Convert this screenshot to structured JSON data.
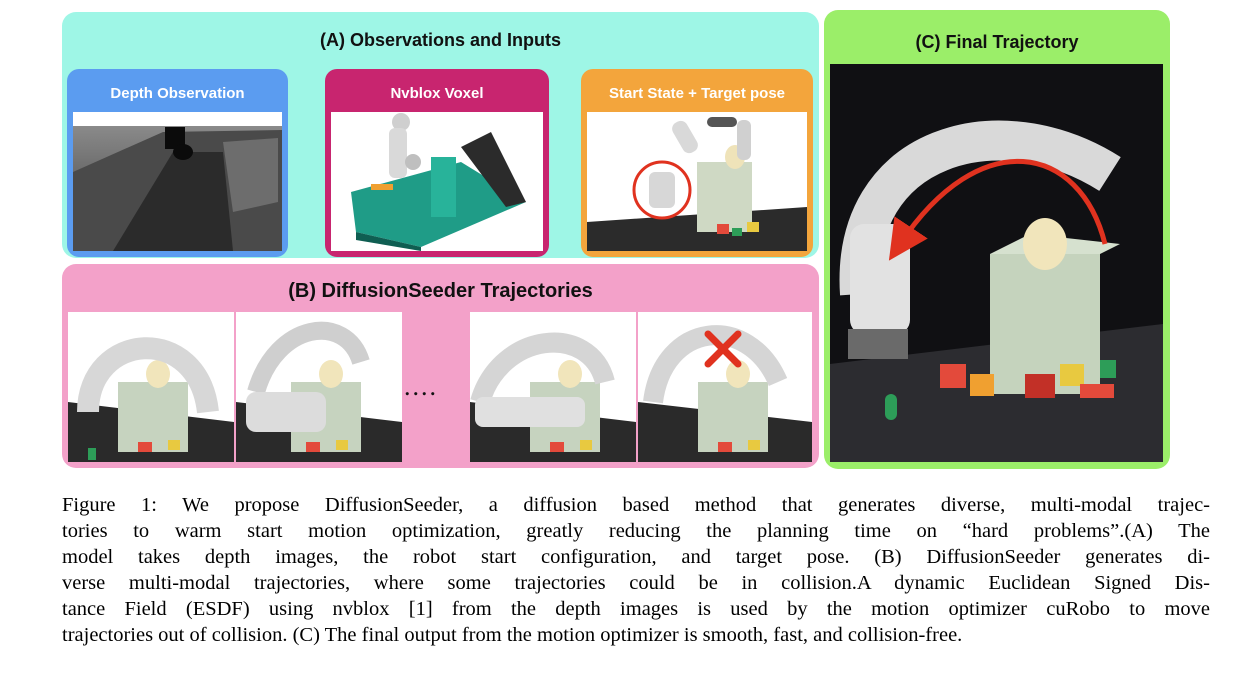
{
  "panels": {
    "a": {
      "title": "(A) Observations and Inputs",
      "subpanels": [
        {
          "title": "Depth Observation"
        },
        {
          "title": "Nvblox Voxel"
        },
        {
          "title": "Start State + Target pose"
        }
      ]
    },
    "b": {
      "title": "(B) DiffusionSeeder Trajectories",
      "ellipsis": "...."
    },
    "c": {
      "title": "(C) Final Trajectory"
    }
  },
  "colors": {
    "panel_a": "#9ef6e6",
    "panel_b": "#f3a1c9",
    "panel_c": "#9bee69",
    "depth": "#5b9cf0",
    "voxel": "#c8256f",
    "start": "#f3a53c",
    "arrow": "#e0321f"
  },
  "caption": {
    "lines": [
      "Figure 1: We propose DiffusionSeeder, a diffusion based method that generates diverse, multi-modal trajec-",
      "tories to warm start motion optimization, greatly reducing the planning time on “hard problems”.(A) The",
      "model takes depth images, the robot start configuration, and target pose. (B) DiffusionSeeder generates di-",
      "verse multi-modal trajectories, where some trajectories could be in collision.A dynamic Euclidean Signed Dis-",
      "tance Field (ESDF) using nvblox [1] from the depth images is used by the motion optimizer cuRobo to move",
      "trajectories out of collision. (C) The final output from the motion optimizer is smooth, fast, and collision-free."
    ]
  }
}
